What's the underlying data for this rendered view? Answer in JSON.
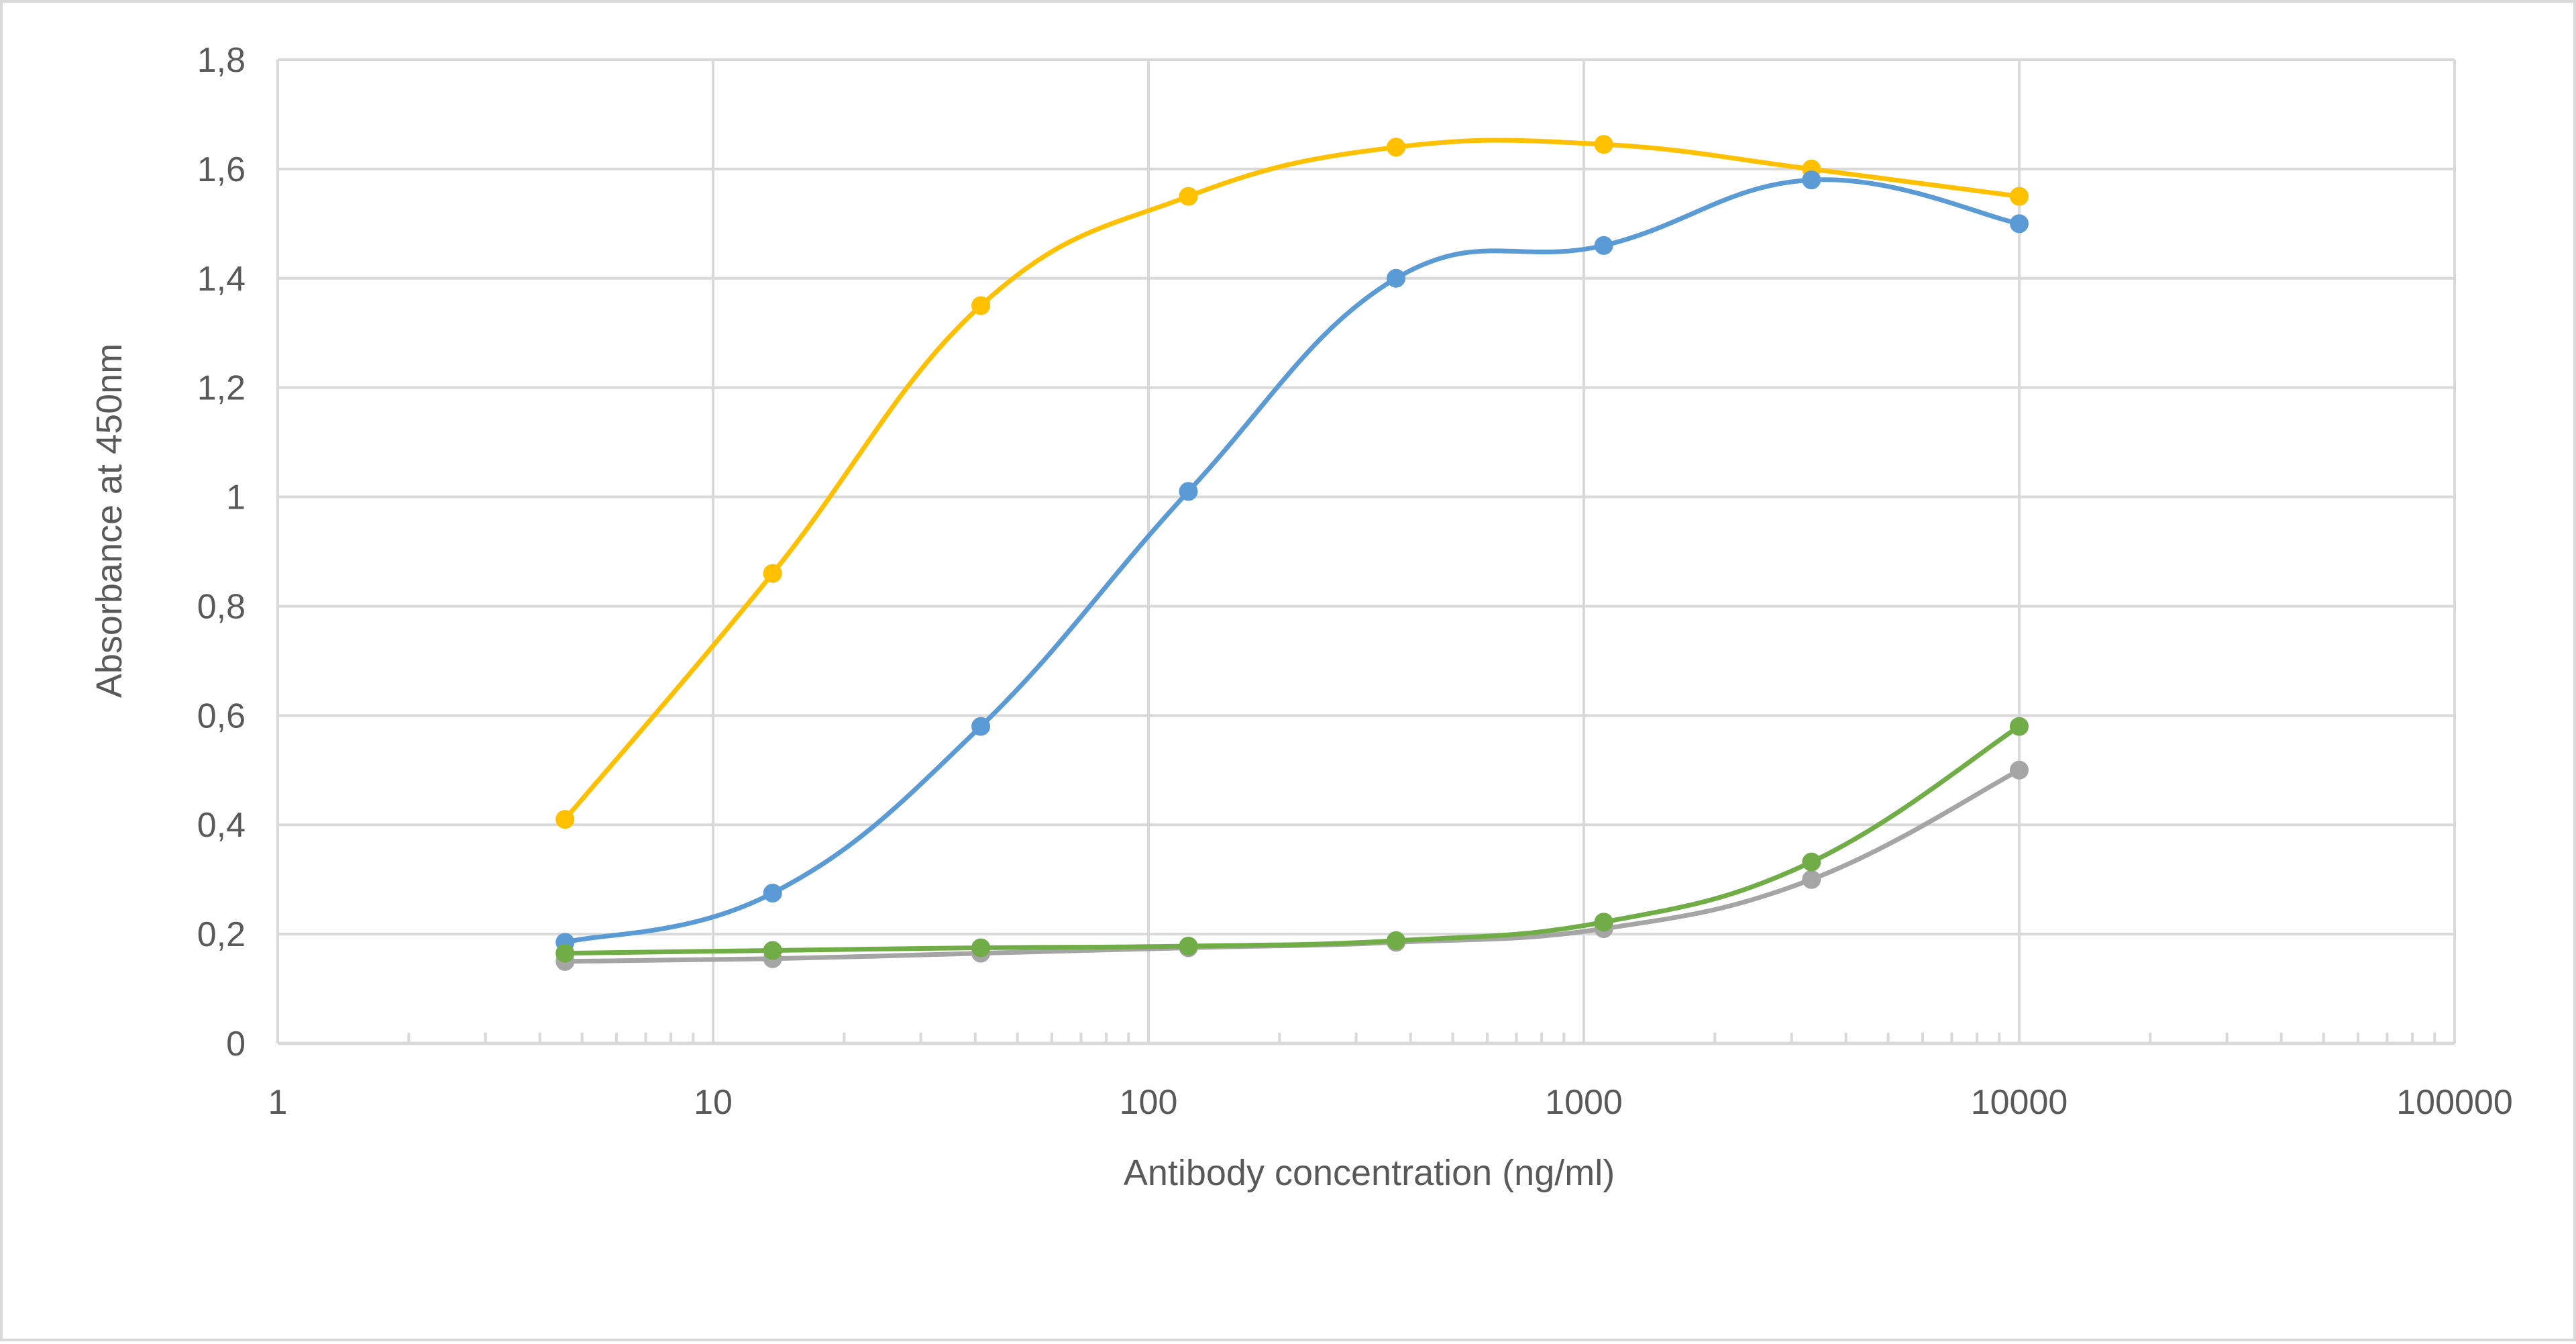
{
  "chart_data": {
    "type": "line",
    "title": "",
    "xlabel": "Antibody concentration (ng/ml)",
    "ylabel": "Absorbance at 450nm",
    "x_scale": "log",
    "xlim": [
      1,
      100000
    ],
    "ylim": [
      0,
      1.8
    ],
    "x_ticks": [
      1,
      10,
      100,
      1000,
      10000,
      100000
    ],
    "x_tick_labels": [
      "1",
      "10",
      "100",
      "1000",
      "10000",
      "100000"
    ],
    "y_ticks": [
      0,
      0.2,
      0.4,
      0.6,
      0.8,
      1,
      1.2,
      1.4,
      1.6,
      1.8
    ],
    "y_tick_labels": [
      "0",
      "0,2",
      "0,4",
      "0,6",
      "0,8",
      "1",
      "1,2",
      "1,4",
      "1,6",
      "1,8"
    ],
    "grid": true,
    "legend": "none",
    "x": [
      4.57,
      13.7,
      41.2,
      123.5,
      370.4,
      1111,
      3333,
      10000
    ],
    "series": [
      {
        "name": "series-yellow",
        "color": "#ffc000",
        "values": [
          0.41,
          0.86,
          1.35,
          1.55,
          1.64,
          1.645,
          1.6,
          1.55
        ]
      },
      {
        "name": "series-blue",
        "color": "#5b9bd5",
        "values": [
          0.185,
          0.275,
          0.58,
          1.01,
          1.4,
          1.46,
          1.58,
          1.5
        ]
      },
      {
        "name": "series-gray",
        "color": "#a5a5a5",
        "values": [
          0.15,
          0.155,
          0.165,
          0.175,
          0.185,
          0.21,
          0.3,
          0.5
        ]
      },
      {
        "name": "series-green",
        "color": "#70ad47",
        "values": [
          0.165,
          0.17,
          0.175,
          0.178,
          0.188,
          0.222,
          0.332,
          0.58
        ]
      }
    ]
  }
}
